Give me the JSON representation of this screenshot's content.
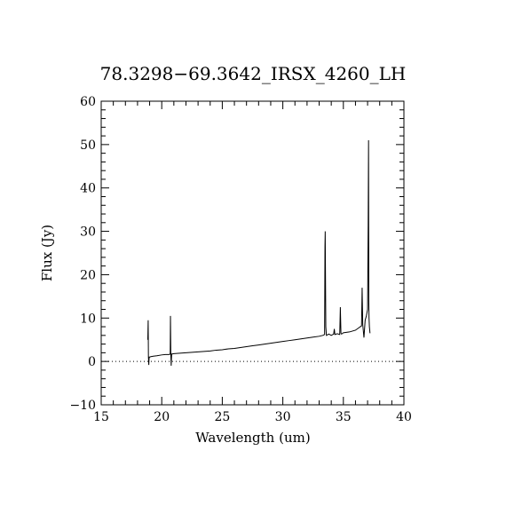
{
  "chart_data": {
    "type": "line",
    "title": "78.3298−69.3642_IRSX_4260_LH",
    "xlabel": "Wavelength (um)",
    "ylabel": "Flux (Jy)",
    "xlim": [
      15,
      40
    ],
    "ylim": [
      -10,
      60
    ],
    "x_ticks": [
      15,
      20,
      25,
      30,
      35,
      40
    ],
    "x_tick_labels": [
      "15",
      "20",
      "25",
      "30",
      "35",
      "40"
    ],
    "y_ticks": [
      -10,
      0,
      10,
      20,
      30,
      40,
      50,
      60
    ],
    "y_tick_labels": [
      "−10",
      "0",
      "10",
      "20",
      "30",
      "40",
      "50",
      "60"
    ],
    "reference_line": {
      "y": 0,
      "style": "dotted"
    },
    "grid": false,
    "series": [
      {
        "x": [
          18.85,
          18.88,
          18.9,
          18.93,
          18.95,
          18.97,
          19.0,
          19.1,
          19.3,
          19.6,
          20.0,
          20.3,
          20.6,
          20.7,
          20.72,
          20.75,
          20.78,
          20.82,
          21.0,
          21.5,
          22.0,
          22.5,
          23.0,
          23.5,
          24.0,
          24.5,
          25.0,
          25.5,
          26.0,
          26.5,
          27.0,
          27.5,
          28.0,
          28.5,
          29.0,
          29.5,
          30.0,
          30.5,
          31.0,
          31.5,
          32.0,
          32.5,
          33.0,
          33.3,
          33.45,
          33.48,
          33.5,
          33.55,
          33.6,
          33.8,
          34.0,
          34.2,
          34.25,
          34.3,
          34.5,
          34.7,
          34.75,
          34.8,
          34.85,
          35.0,
          35.5,
          36.0,
          36.3,
          36.5,
          36.55,
          36.6,
          36.7,
          36.8,
          36.9,
          37.0,
          37.05,
          37.08,
          37.1,
          37.12,
          37.15,
          37.2
        ],
        "y": [
          5.0,
          9.5,
          1.0,
          -0.8,
          0.5,
          1.0,
          1.0,
          1.1,
          1.2,
          1.3,
          1.5,
          1.6,
          1.6,
          1.7,
          10.5,
          1.7,
          -1.0,
          1.7,
          1.8,
          1.9,
          2.0,
          2.1,
          2.2,
          2.3,
          2.4,
          2.6,
          2.7,
          2.9,
          3.0,
          3.2,
          3.4,
          3.6,
          3.8,
          4.0,
          4.2,
          4.4,
          4.6,
          4.8,
          5.0,
          5.2,
          5.4,
          5.6,
          5.8,
          6.0,
          6.2,
          26.5,
          30.0,
          8.0,
          6.0,
          6.3,
          6.0,
          6.3,
          7.5,
          6.2,
          6.4,
          6.2,
          12.5,
          6.5,
          6.3,
          6.6,
          6.8,
          7.2,
          7.8,
          8.2,
          17.0,
          8.5,
          5.5,
          9.5,
          10.5,
          12.0,
          31.5,
          51.0,
          14.0,
          10.0,
          8.0,
          6.5
        ]
      }
    ]
  }
}
